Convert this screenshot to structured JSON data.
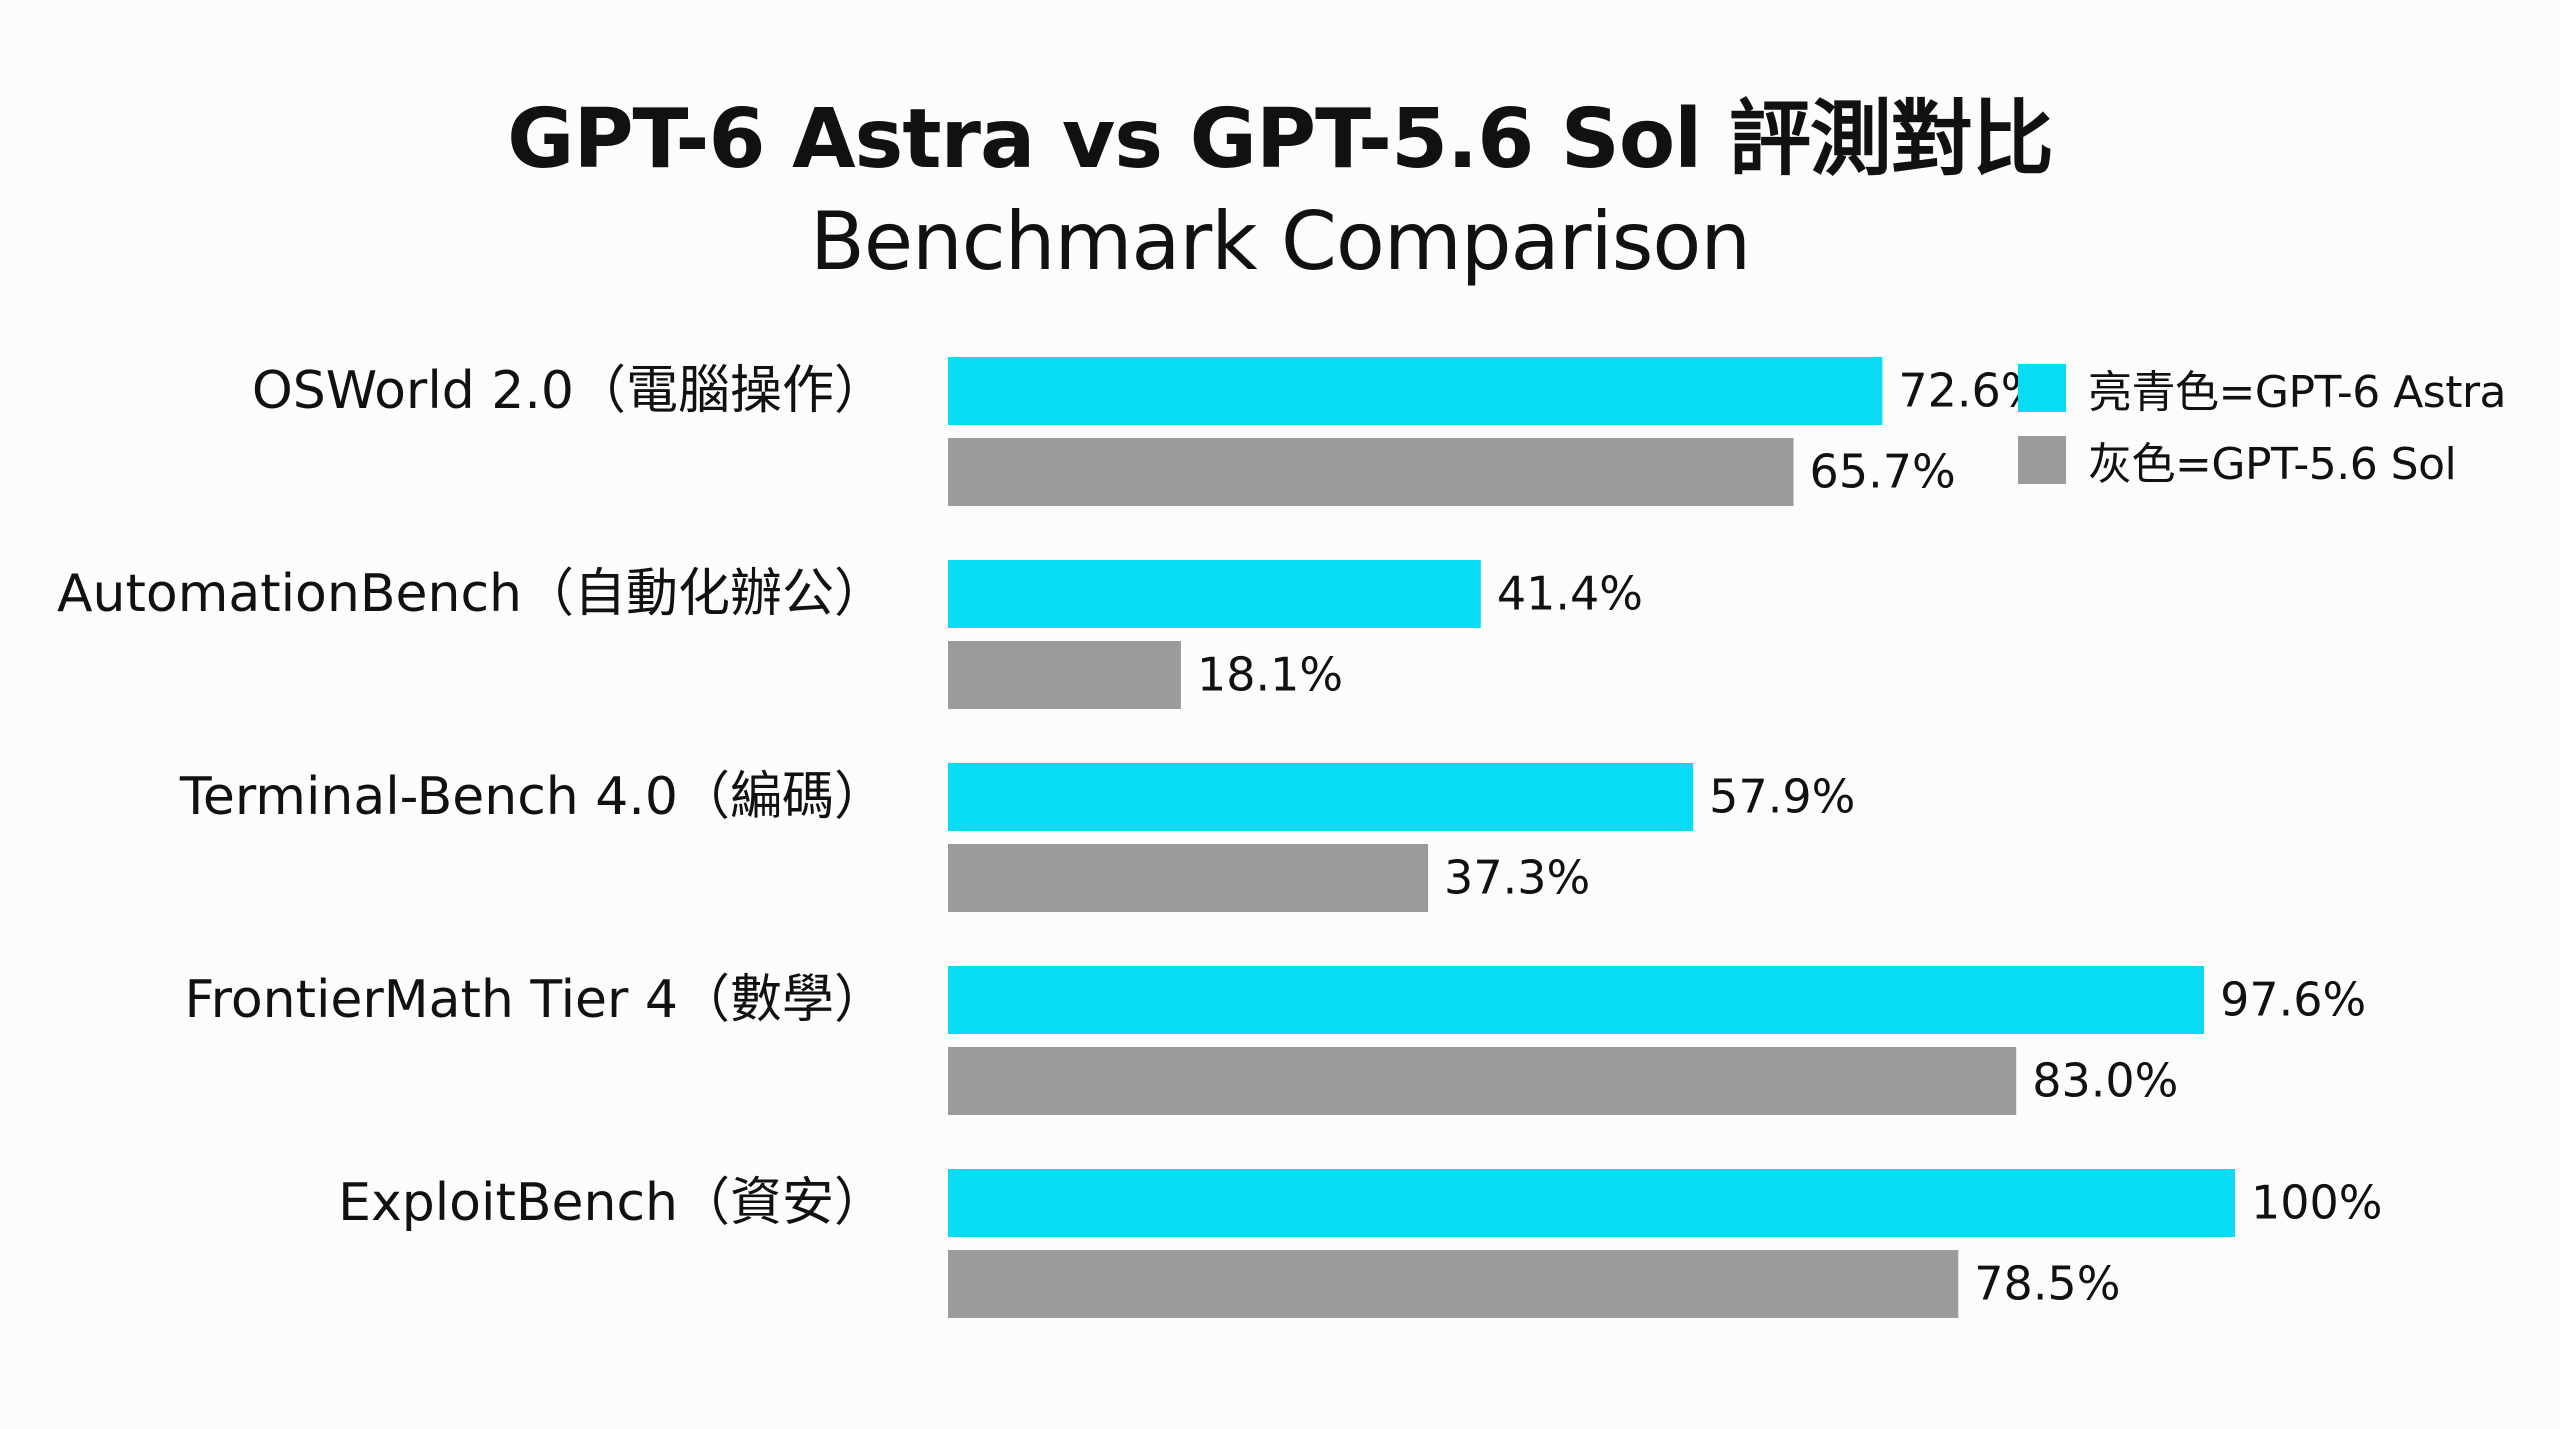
{
  "title": "GPT-6 Astra vs GPT-5.6 Sol 評測對比",
  "subtitle": "Benchmark Comparison",
  "legend": {
    "items": [
      {
        "label": "亮青色=GPT-6 Astra",
        "color": "#08dcf4"
      },
      {
        "label": "灰色=GPT-5.6 Sol",
        "color": "#9b9b9b"
      }
    ]
  },
  "chart_data": {
    "type": "bar",
    "orientation": "horizontal",
    "categories": [
      "OSWorld 2.0（電腦操作）",
      "AutomationBench（自動化辦公）",
      "Terminal-Bench 4.0（編碼）",
      "FrontierMath Tier 4（數學）",
      "ExploitBench（資安）"
    ],
    "series": [
      {
        "name": "GPT-6 Astra",
        "color": "#08dcf4",
        "values": [
          72.6,
          41.4,
          57.9,
          97.6,
          100
        ],
        "labels": [
          "72.6%",
          "41.4%",
          "57.9%",
          "97.6%",
          "100%"
        ]
      },
      {
        "name": "GPT-5.6 Sol",
        "color": "#9b9b9b",
        "values": [
          65.7,
          18.1,
          37.3,
          83.0,
          78.5
        ],
        "labels": [
          "65.7%",
          "18.1%",
          "37.3%",
          "83.0%",
          "78.5%"
        ]
      }
    ],
    "xlim": [
      0,
      100
    ],
    "grid": false,
    "legend_position": "top-right"
  }
}
